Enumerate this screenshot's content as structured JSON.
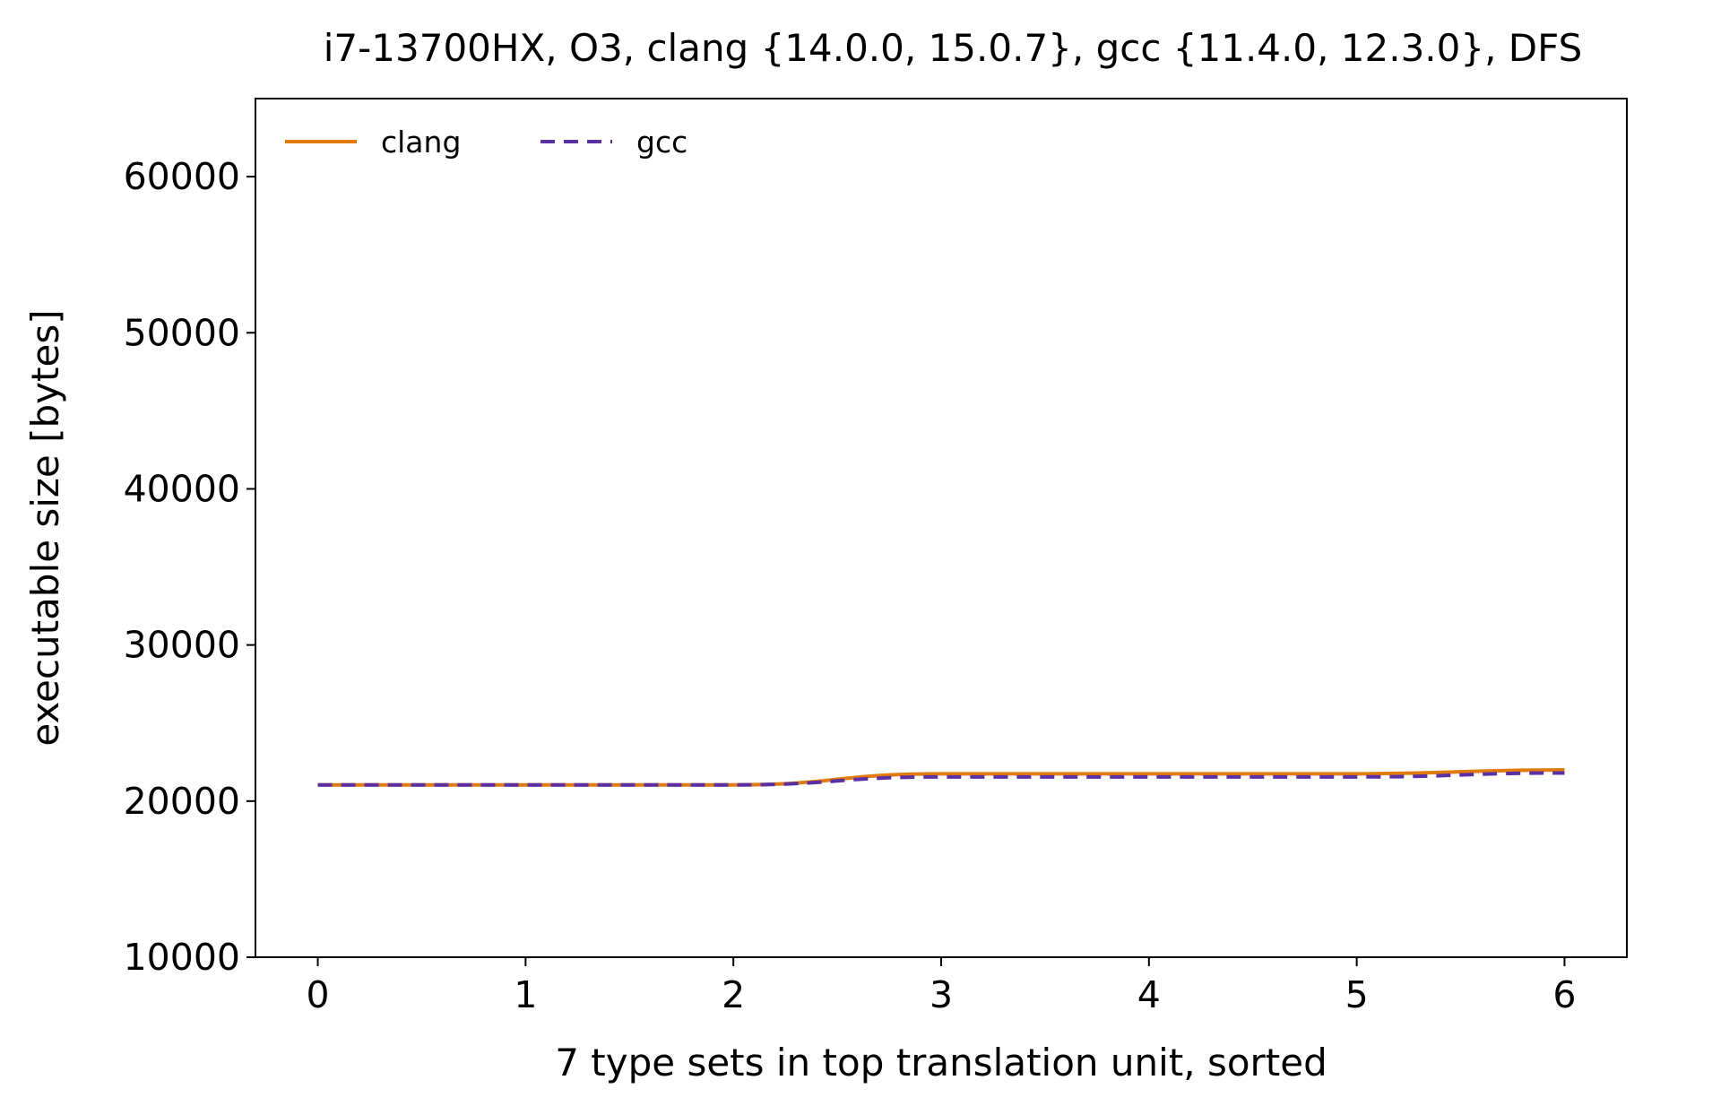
{
  "chart_data": {
    "type": "line",
    "title": "i7-13700HX, O3, clang {14.0.0, 15.0.7}, gcc {11.4.0, 12.3.0}, DFS",
    "xlabel": "7 type sets in top translation unit, sorted",
    "ylabel": "executable size [bytes]",
    "x": [
      0,
      1,
      2,
      3,
      4,
      5,
      6
    ],
    "xlim": [
      -0.3,
      6.3
    ],
    "ylim": [
      10000,
      65000
    ],
    "xticks": [
      0,
      1,
      2,
      3,
      4,
      5,
      6
    ],
    "yticks": [
      10000,
      20000,
      30000,
      40000,
      50000,
      60000
    ],
    "grid": false,
    "legend": {
      "placement": "top-left",
      "columns": 2
    },
    "series": [
      {
        "name": "clang",
        "color": "#e07b0c",
        "style": "solid",
        "values": [
          21040,
          21040,
          21040,
          21750,
          21750,
          21750,
          22000
        ]
      },
      {
        "name": "gcc",
        "color": "#5b2fa6",
        "style": "dashed",
        "values": [
          21040,
          21040,
          21040,
          21550,
          21550,
          21550,
          21800
        ]
      }
    ]
  }
}
